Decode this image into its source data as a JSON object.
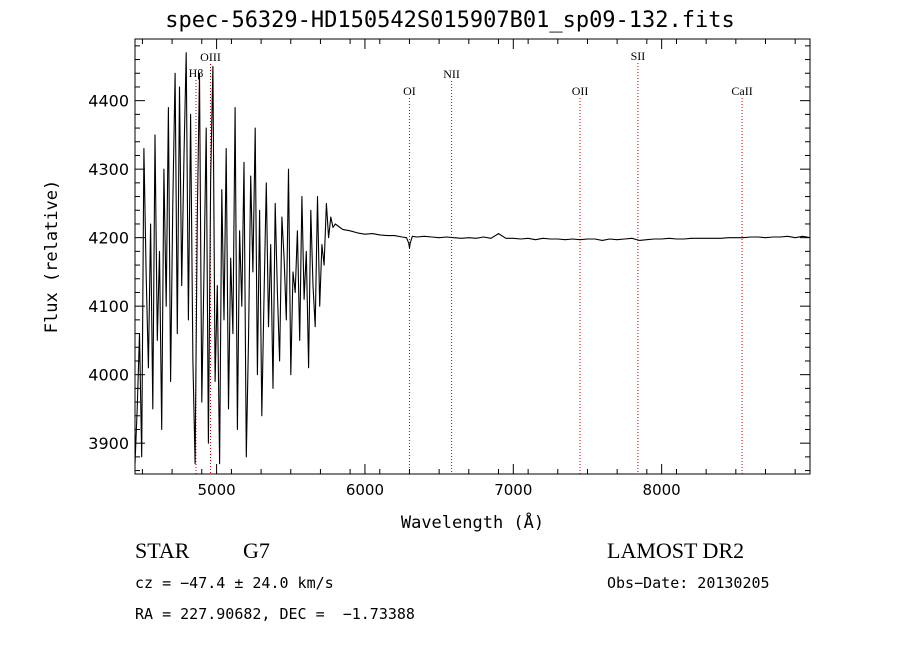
{
  "chart_data": {
    "type": "line",
    "title": "spec-56329-HD150542S015907B01_sp09-132.fits",
    "xlabel": "Wavelength (Å)",
    "ylabel": "Flux (relative)",
    "xlim": [
      4450,
      9000
    ],
    "ylim": [
      3855,
      4490
    ],
    "x_ticks": [
      5000,
      6000,
      7000,
      8000
    ],
    "x_tick_labels": [
      "5000",
      "6000",
      "7000",
      "8000"
    ],
    "y_ticks": [
      3900,
      4000,
      4100,
      4200,
      4300,
      4400
    ],
    "y_tick_labels": [
      "3900",
      "4000",
      "4100",
      "4200",
      "4300",
      "4400"
    ],
    "grid": false,
    "series": [
      {
        "x": [
          4450,
          4465,
          4480,
          4495,
          4510,
          4525,
          4540,
          4555,
          4570,
          4585,
          4600,
          4615,
          4630,
          4645,
          4660,
          4675,
          4690,
          4705,
          4720,
          4735,
          4750,
          4765,
          4780,
          4795,
          4810,
          4825,
          4840,
          4855,
          4870,
          4885,
          4900,
          4915,
          4930,
          4945,
          4960,
          4975,
          4990,
          5005,
          5020,
          5035,
          5050,
          5065,
          5080,
          5095,
          5110,
          5125,
          5140,
          5155,
          5170,
          5185,
          5200,
          5215,
          5230,
          5245,
          5260,
          5275,
          5290,
          5305,
          5320,
          5335,
          5350,
          5365,
          5380,
          5395,
          5410,
          5425,
          5440,
          5455,
          5470,
          5485,
          5500,
          5515,
          5530,
          5545,
          5560,
          5575,
          5590,
          5605,
          5620,
          5635,
          5650,
          5665,
          5680,
          5695,
          5710,
          5725,
          5740,
          5755,
          5770,
          5785,
          5800,
          5850,
          5900,
          5950,
          6000,
          6050,
          6100,
          6150,
          6200,
          6250,
          6280,
          6295,
          6300,
          6305,
          6320,
          6350,
          6400,
          6450,
          6500,
          6550,
          6600,
          6650,
          6700,
          6750,
          6800,
          6850,
          6900,
          6950,
          7000,
          7050,
          7100,
          7150,
          7200,
          7250,
          7300,
          7350,
          7400,
          7450,
          7500,
          7550,
          7600,
          7650,
          7700,
          7750,
          7800,
          7850,
          7900,
          7950,
          8000,
          8050,
          8100,
          8150,
          8200,
          8250,
          8300,
          8350,
          8400,
          8450,
          8500,
          8550,
          8600,
          8650,
          8700,
          8750,
          8800,
          8850,
          8900,
          8950,
          9000
        ],
        "y": [
          3870,
          3950,
          4060,
          3880,
          4330,
          4150,
          4010,
          4220,
          3950,
          4350,
          4050,
          4180,
          3920,
          4300,
          4100,
          4390,
          3990,
          4250,
          4440,
          4060,
          4420,
          4130,
          4320,
          4470,
          4080,
          4380,
          4020,
          3870,
          4230,
          4440,
          3960,
          4150,
          4360,
          3900,
          4290,
          4450,
          3990,
          4130,
          3870,
          4270,
          4080,
          4330,
          3950,
          4170,
          4060,
          4390,
          3920,
          4210,
          4100,
          4310,
          3880,
          4050,
          4290,
          4150,
          4360,
          4000,
          4240,
          3940,
          4120,
          4280,
          4070,
          4190,
          3980,
          4250,
          4120,
          4020,
          4230,
          4170,
          4080,
          4300,
          4000,
          4150,
          4120,
          4210,
          4050,
          4260,
          4110,
          4180,
          4010,
          4240,
          4130,
          4070,
          4260,
          4100,
          4190,
          4160,
          4250,
          4200,
          4230,
          4215,
          4220,
          4212,
          4210,
          4207,
          4205,
          4206,
          4204,
          4203,
          4203,
          4201,
          4200,
          4192,
          4185,
          4192,
          4202,
          4201,
          4202,
          4201,
          4200,
          4201,
          4200,
          4199,
          4200,
          4199,
          4201,
          4199,
          4206,
          4199,
          4199,
          4198,
          4199,
          4197,
          4199,
          4198,
          4198,
          4197,
          4198,
          4197,
          4198,
          4198,
          4196,
          4198,
          4197,
          4198,
          4199,
          4196,
          4197,
          4198,
          4198,
          4199,
          4198,
          4198,
          4199,
          4199,
          4199,
          4199,
          4199,
          4200,
          4200,
          4200,
          4201,
          4201,
          4200,
          4201,
          4201,
          4202,
          4200,
          4202,
          4200
        ]
      }
    ],
    "lines": [
      {
        "label": "Hβ",
        "x": 4861
      },
      {
        "label": "OIII",
        "x": 4959
      },
      {
        "label": "OI",
        "x": 6300
      },
      {
        "label": "NII",
        "x": 6584
      },
      {
        "label": "OII",
        "x": 7450
      },
      {
        "label": "SII",
        "x": 7840
      },
      {
        "label": "CaII",
        "x": 8542
      }
    ]
  },
  "info": {
    "object_class": "STAR",
    "subclass": "G7",
    "survey": "LAMOST DR2",
    "redshift": "cz = −47.4 ± 24.0 km/s",
    "obs_date": "Obs−Date: 20130205",
    "coords": "RA = 227.90682, DEC =  −1.73388"
  },
  "colors": {
    "spectrum": "#000000",
    "line_marker": "#cc0000",
    "axes": "#000000"
  }
}
